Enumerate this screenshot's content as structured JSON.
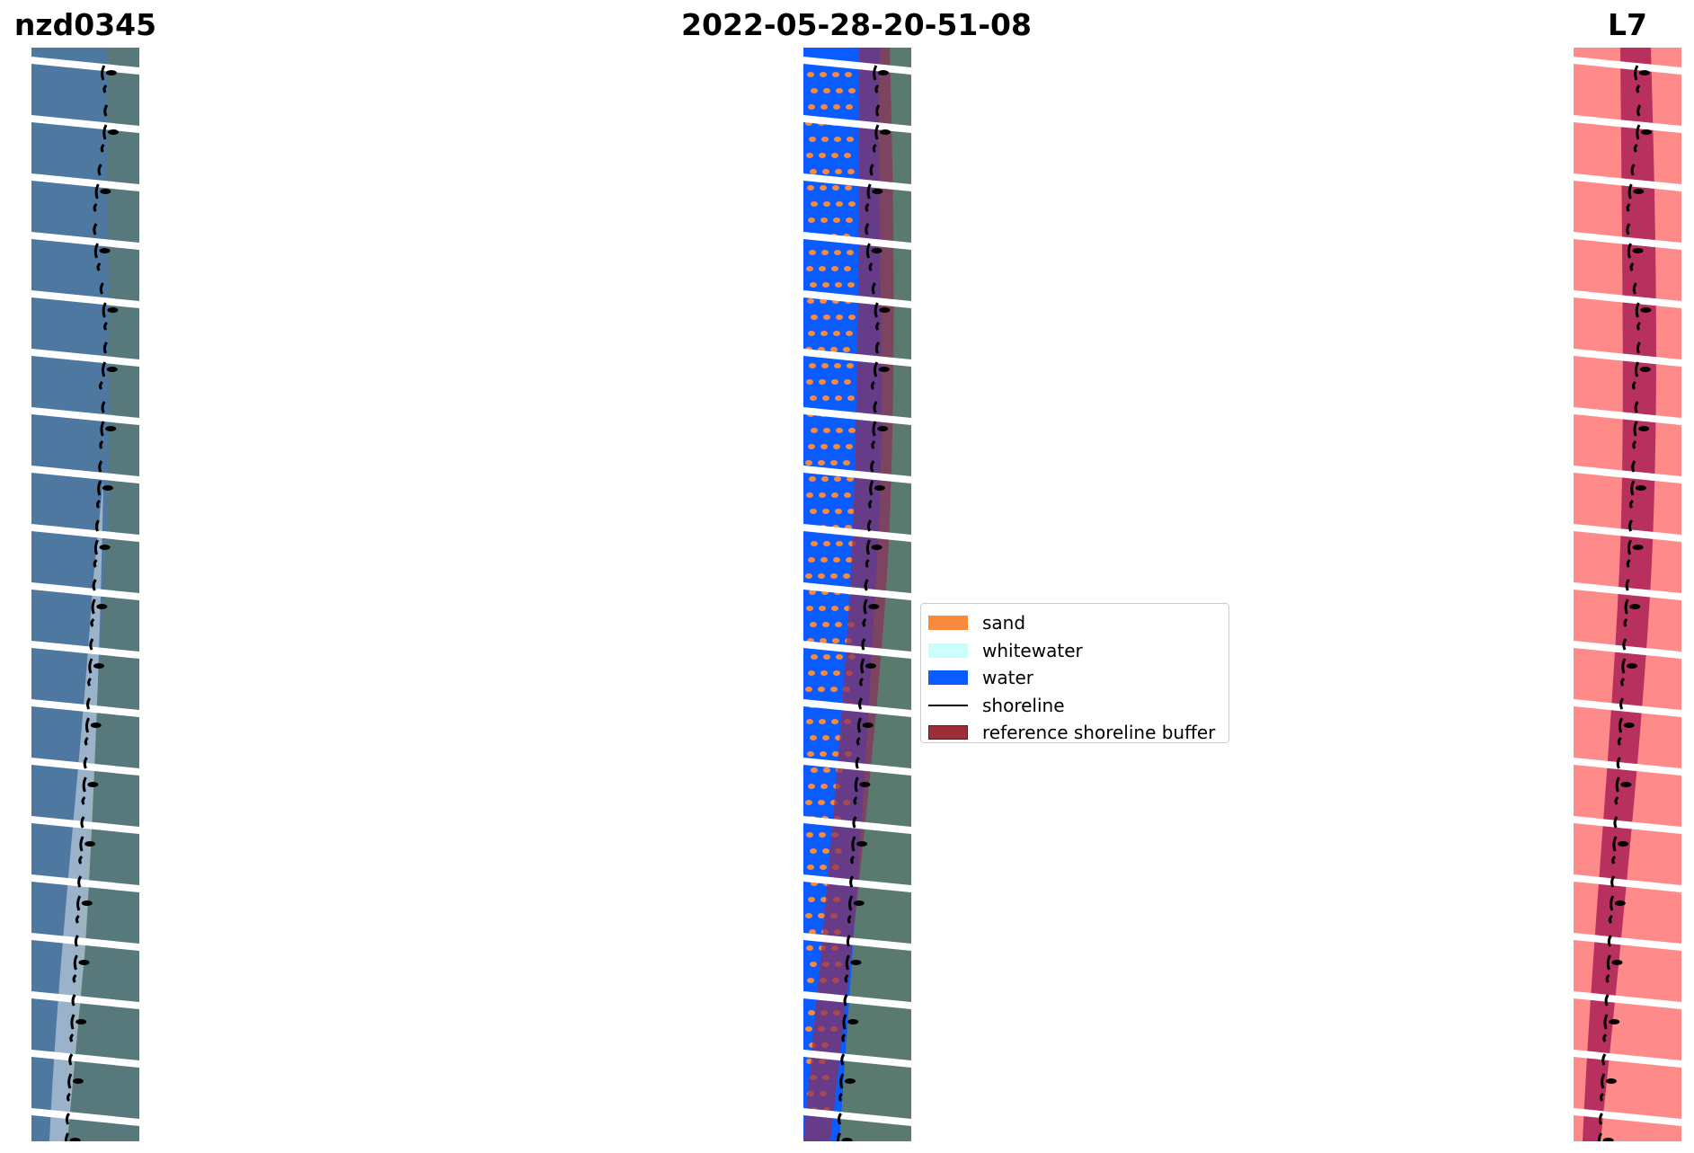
{
  "titles": {
    "left": "nzd0345",
    "center": "2022-05-28-20-51-08",
    "right": "L7"
  },
  "legend": [
    {
      "label": "sand",
      "color": "#f98a3b",
      "kind": "patch"
    },
    {
      "label": "whitewater",
      "color": "#cbfdfb",
      "kind": "patch"
    },
    {
      "label": "water",
      "color": "#0a5cff",
      "kind": "patch"
    },
    {
      "label": "shoreline",
      "color": "#000000",
      "kind": "line"
    },
    {
      "label": "reference shoreline buffer",
      "color": "#9c2f35",
      "kind": "patch"
    }
  ],
  "colors": {
    "rgb_base": "#4f78a0",
    "land": "#5a7a70",
    "sand": "#f98a3b",
    "water": "#0a5cff",
    "buffer": "#8a2f5a",
    "mask": "#ff8a8a",
    "stripe_gap": "#ffffff"
  }
}
